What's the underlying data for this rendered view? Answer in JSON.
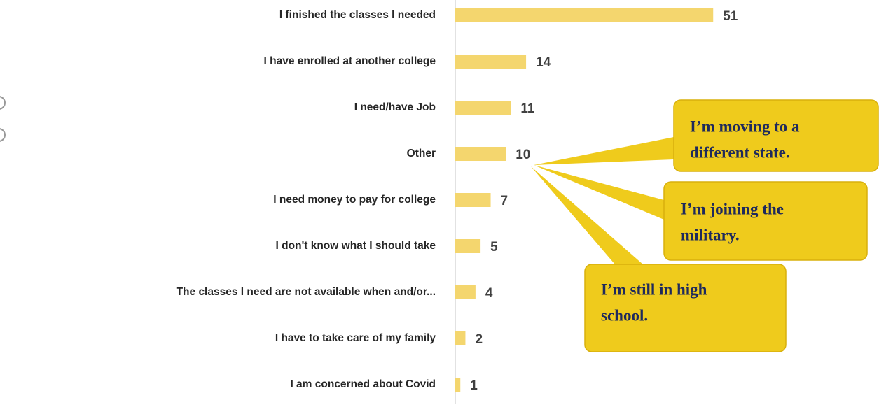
{
  "chart_data": {
    "type": "bar",
    "orientation": "horizontal",
    "categories": [
      "I finished the classes I needed",
      "I have enrolled at another college",
      "I need/have Job",
      "Other",
      "I need money to pay for college",
      "I don't know what I should take",
      "The classes I need are not available when and/or...",
      "I have to take care of my family",
      "I am concerned about Covid"
    ],
    "values": [
      51,
      14,
      11,
      10,
      7,
      5,
      4,
      2,
      1
    ],
    "color": "#f4d66e",
    "annotations": [
      {
        "lines": [
          "I’m moving to a",
          "different state."
        ]
      },
      {
        "lines": [
          "I’m joining the",
          "military."
        ]
      },
      {
        "lines": [
          "I’m still in high",
          "school."
        ]
      }
    ],
    "annotation_color": "#efcb1c"
  }
}
